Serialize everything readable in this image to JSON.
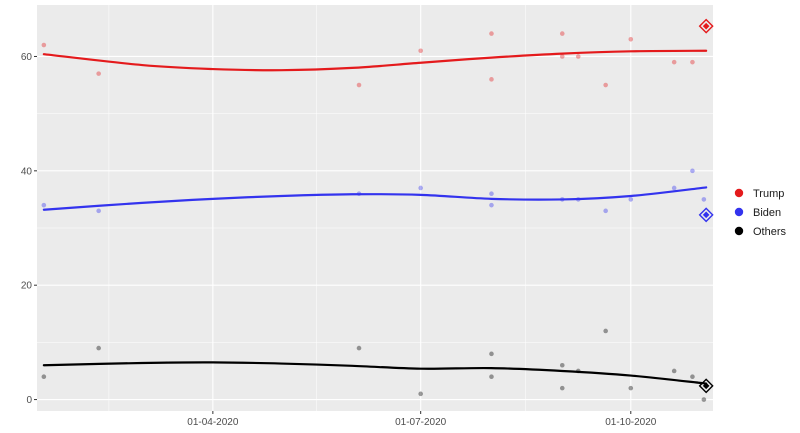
{
  "chart_data": {
    "type": "scatter",
    "title": "",
    "xlabel": "",
    "ylabel": "",
    "x_axis_type": "date",
    "xlim": [
      "2020-01-15",
      "2020-11-06"
    ],
    "ylim": [
      -2,
      69
    ],
    "x_ticks": [
      {
        "date": "2020-04-01",
        "label": "01-04-2020"
      },
      {
        "date": "2020-07-01",
        "label": "01-07-2020"
      },
      {
        "date": "2020-10-01",
        "label": "01-10-2020"
      }
    ],
    "y_ticks": [
      0,
      20,
      40,
      60
    ],
    "grid": true,
    "legend": {
      "position": "right"
    },
    "series": [
      {
        "name": "Trump",
        "color": "#e41a1c",
        "points": [
          {
            "x": "2020-01-18",
            "y": 62
          },
          {
            "x": "2020-02-11",
            "y": 57
          },
          {
            "x": "2020-06-04",
            "y": 55
          },
          {
            "x": "2020-07-01",
            "y": 61
          },
          {
            "x": "2020-08-01",
            "y": 64
          },
          {
            "x": "2020-08-01",
            "y": 56
          },
          {
            "x": "2020-09-01",
            "y": 64
          },
          {
            "x": "2020-09-01",
            "y": 60
          },
          {
            "x": "2020-09-08",
            "y": 60
          },
          {
            "x": "2020-09-20",
            "y": 55
          },
          {
            "x": "2020-10-01",
            "y": 63
          },
          {
            "x": "2020-10-20",
            "y": 59
          },
          {
            "x": "2020-10-28",
            "y": 59
          }
        ],
        "trend": [
          {
            "x": "2020-01-18",
            "y": 60.4
          },
          {
            "x": "2020-03-01",
            "y": 58.5
          },
          {
            "x": "2020-04-01",
            "y": 57.8
          },
          {
            "x": "2020-05-01",
            "y": 57.6
          },
          {
            "x": "2020-06-01",
            "y": 58.0
          },
          {
            "x": "2020-07-01",
            "y": 58.9
          },
          {
            "x": "2020-08-01",
            "y": 59.8
          },
          {
            "x": "2020-09-01",
            "y": 60.5
          },
          {
            "x": "2020-10-01",
            "y": 60.9
          },
          {
            "x": "2020-11-03",
            "y": 61.0
          }
        ],
        "result": {
          "x": "2020-11-03",
          "y": 65.3
        }
      },
      {
        "name": "Biden",
        "color": "#3333ee",
        "points": [
          {
            "x": "2020-01-18",
            "y": 34
          },
          {
            "x": "2020-02-11",
            "y": 33
          },
          {
            "x": "2020-06-04",
            "y": 36
          },
          {
            "x": "2020-07-01",
            "y": 37
          },
          {
            "x": "2020-08-01",
            "y": 36
          },
          {
            "x": "2020-08-01",
            "y": 34
          },
          {
            "x": "2020-09-01",
            "y": 35
          },
          {
            "x": "2020-09-08",
            "y": 35
          },
          {
            "x": "2020-09-20",
            "y": 33
          },
          {
            "x": "2020-10-01",
            "y": 35
          },
          {
            "x": "2020-10-20",
            "y": 37
          },
          {
            "x": "2020-10-28",
            "y": 40
          },
          {
            "x": "2020-11-02",
            "y": 35
          }
        ],
        "trend": [
          {
            "x": "2020-01-18",
            "y": 33.2
          },
          {
            "x": "2020-03-01",
            "y": 34.4
          },
          {
            "x": "2020-04-01",
            "y": 35.1
          },
          {
            "x": "2020-05-01",
            "y": 35.6
          },
          {
            "x": "2020-06-01",
            "y": 35.9
          },
          {
            "x": "2020-07-01",
            "y": 35.8
          },
          {
            "x": "2020-08-01",
            "y": 35.1
          },
          {
            "x": "2020-09-01",
            "y": 35.0
          },
          {
            "x": "2020-10-01",
            "y": 35.6
          },
          {
            "x": "2020-11-03",
            "y": 37.1
          }
        ],
        "result": {
          "x": "2020-11-03",
          "y": 32.3
        }
      },
      {
        "name": "Others",
        "color": "#000000",
        "points": [
          {
            "x": "2020-01-18",
            "y": 4
          },
          {
            "x": "2020-02-11",
            "y": 9
          },
          {
            "x": "2020-06-04",
            "y": 9
          },
          {
            "x": "2020-07-01",
            "y": 1
          },
          {
            "x": "2020-08-01",
            "y": 8
          },
          {
            "x": "2020-08-01",
            "y": 4
          },
          {
            "x": "2020-09-01",
            "y": 6
          },
          {
            "x": "2020-09-01",
            "y": 2
          },
          {
            "x": "2020-09-08",
            "y": 5
          },
          {
            "x": "2020-09-20",
            "y": 12
          },
          {
            "x": "2020-10-01",
            "y": 2
          },
          {
            "x": "2020-10-20",
            "y": 5
          },
          {
            "x": "2020-10-28",
            "y": 4
          },
          {
            "x": "2020-11-02",
            "y": 0
          }
        ],
        "trend": [
          {
            "x": "2020-01-18",
            "y": 6.0
          },
          {
            "x": "2020-03-01",
            "y": 6.4
          },
          {
            "x": "2020-04-01",
            "y": 6.5
          },
          {
            "x": "2020-05-01",
            "y": 6.3
          },
          {
            "x": "2020-06-01",
            "y": 5.9
          },
          {
            "x": "2020-07-01",
            "y": 5.4
          },
          {
            "x": "2020-08-01",
            "y": 5.5
          },
          {
            "x": "2020-09-01",
            "y": 5.0
          },
          {
            "x": "2020-10-01",
            "y": 4.2
          },
          {
            "x": "2020-11-03",
            "y": 2.8
          }
        ],
        "result": {
          "x": "2020-11-03",
          "y": 2.4
        }
      }
    ]
  }
}
